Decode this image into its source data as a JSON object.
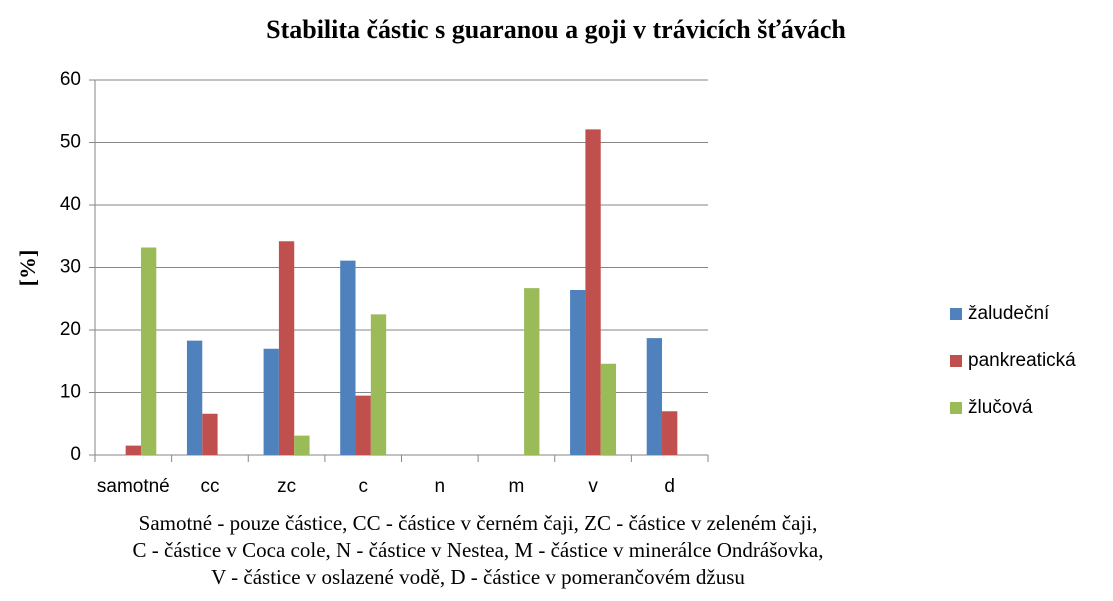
{
  "chart_data": {
    "type": "bar",
    "title": "Stabilita částic s guaranou a goji v trávicích šťávách",
    "y_label": "[%]",
    "categories": [
      "samotné",
      "cc",
      "zc",
      "c",
      "n",
      "m",
      "v",
      "d"
    ],
    "series": [
      {
        "name": "žaludeční",
        "color": "#4f81bd",
        "values": [
          0,
          18.3,
          17,
          31.1,
          0,
          0,
          26.4,
          18.7
        ]
      },
      {
        "name": "pankreatická",
        "color": "#c0504d",
        "values": [
          1.5,
          6.6,
          34.2,
          9.5,
          0,
          0,
          52.1,
          7
        ]
      },
      {
        "name": "žlučová",
        "color": "#9bbb59",
        "values": [
          33.2,
          0,
          3.1,
          22.5,
          0,
          26.7,
          14.6,
          0
        ]
      }
    ],
    "ylim": [
      0,
      60
    ],
    "yticks": [
      0,
      10,
      20,
      30,
      40,
      50,
      60
    ],
    "grid": true,
    "legend": "right",
    "caption": [
      "Samotné - pouze částice, CC - částice v černém čaji, ZC - částice v zeleném čaji,",
      "C - částice v Coca cole, N - částice v Nestea, M - částice v minerálce Ondrášovka,",
      "V - částice v oslazené vodě, D - částice v pomerančovém džusu"
    ]
  }
}
